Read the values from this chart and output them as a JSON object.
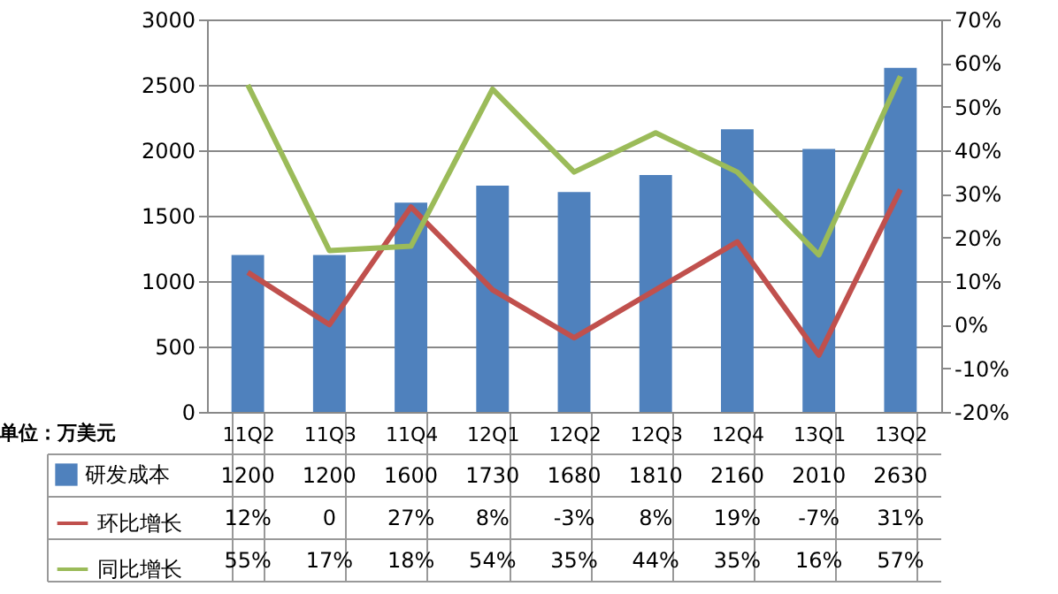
{
  "chart_data": {
    "type": "bar",
    "annotations": [
      "单位：万美元"
    ],
    "categories": [
      "11Q2",
      "11Q3",
      "11Q4",
      "12Q1",
      "12Q2",
      "12Q3",
      "12Q4",
      "13Q1",
      "13Q2"
    ],
    "series": [
      {
        "name": "研发成本",
        "color": "#4f81bd",
        "values": [
          1200,
          1200,
          1600,
          1730,
          1680,
          1810,
          2160,
          2010,
          2630
        ],
        "value_labels": [
          "1200",
          "1200",
          "1600",
          "1730",
          "1680",
          "1810",
          "2160",
          "2010",
          "2630"
        ]
      },
      {
        "name": "环比增长",
        "type": "line",
        "axis": "y2",
        "color": "#c0504d",
        "values": [
          12,
          0,
          27,
          8,
          -3,
          8,
          19,
          -7,
          31
        ],
        "value_labels": [
          "12%",
          "0",
          "27%",
          "8%",
          "-3%",
          "8%",
          "19%",
          "-7%",
          "31%"
        ]
      },
      {
        "name": "同比增长",
        "type": "line",
        "axis": "y2",
        "color": "#9bbb59",
        "values": [
          55,
          17,
          18,
          54,
          35,
          44,
          35,
          16,
          57
        ],
        "value_labels": [
          "55%",
          "17%",
          "18%",
          "54%",
          "35%",
          "44%",
          "35%",
          "16%",
          "57%"
        ]
      }
    ],
    "ylim": [
      0,
      3000
    ],
    "yticks": [
      0,
      500,
      1000,
      1500,
      2000,
      2500,
      3000
    ],
    "y2lim": [
      -20,
      70
    ],
    "y2ticks": [
      {
        "value": -20,
        "label": "-20%"
      },
      {
        "value": -10,
        "label": "-10%"
      },
      {
        "value": 0,
        "label": "0%"
      },
      {
        "value": 10,
        "label": "10%"
      },
      {
        "value": 20,
        "label": "20%"
      },
      {
        "value": 30,
        "label": "30%"
      },
      {
        "value": 40,
        "label": "40%"
      },
      {
        "value": 50,
        "label": "50%"
      },
      {
        "value": 60,
        "label": "60%"
      },
      {
        "value": 70,
        "label": "70%"
      }
    ],
    "grid": "y",
    "legend": "bottom left",
    "marker": "none",
    "line_style": "solid"
  }
}
